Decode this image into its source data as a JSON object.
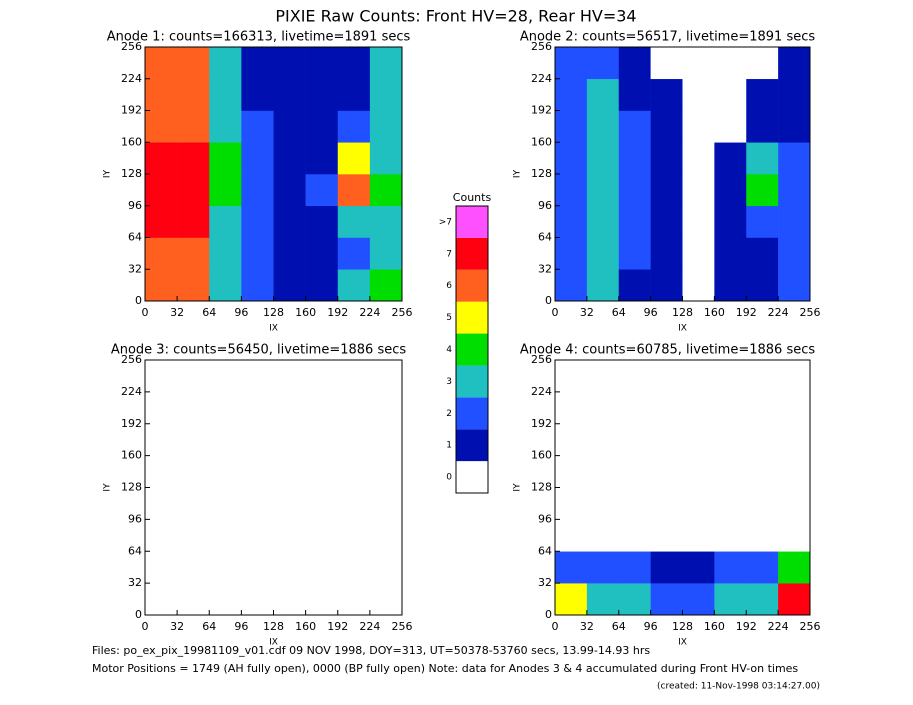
{
  "page": {
    "title": "PIXIE Raw Counts:  Front HV=28, Rear HV=34",
    "footer": [
      "Files: po_ex_pix_19981109_v01.cdf    09 NOV 1998, DOY=313, UT=50378-53760 secs, 13.99-14.93 hrs",
      "Motor Positions = 1749 (AH fully open), 0000 (BP fully open)    Note: data for Anodes 3 & 4 accumulated during Front HV-on times",
      "(created: 11-Nov-1998 03:14:27.00)"
    ]
  },
  "colorbar": {
    "title": "Counts",
    "ticks": [
      0,
      1,
      2,
      3,
      4,
      5,
      6,
      7,
      {
        "value": 8,
        "label": ">7"
      }
    ],
    "colors": [
      "#ffffff",
      "#0010b0",
      "#2050ff",
      "#20c0c0",
      "#00dd00",
      "#ffff00",
      "#ff6020",
      "#ff0010",
      "#ff50ff"
    ]
  },
  "chart_data": [
    {
      "type": "heatmap",
      "title": "Anode 1: counts=166313, livetime=1891 secs",
      "xlabel": "IX",
      "ylabel": "IY",
      "xlim": [
        0,
        256
      ],
      "ylim": [
        0,
        256
      ],
      "xticks": [
        0,
        32,
        64,
        96,
        128,
        160,
        192,
        224,
        256
      ],
      "yticks": [
        0,
        32,
        64,
        96,
        128,
        160,
        192,
        224,
        256
      ],
      "z": [
        [
          6,
          6,
          3,
          2,
          1,
          1,
          3,
          4
        ],
        [
          6,
          6,
          3,
          2,
          1,
          1,
          2,
          3
        ],
        [
          7,
          7,
          3,
          2,
          1,
          1,
          3,
          3
        ],
        [
          7,
          7,
          4,
          2,
          1,
          2,
          6,
          4
        ],
        [
          7,
          7,
          4,
          2,
          1,
          1,
          5,
          3
        ],
        [
          6,
          6,
          3,
          2,
          1,
          1,
          2,
          3
        ],
        [
          6,
          6,
          3,
          1,
          1,
          1,
          1,
          3
        ],
        [
          6,
          6,
          3,
          1,
          1,
          1,
          1,
          3
        ]
      ]
    },
    {
      "type": "heatmap",
      "title": "Anode 2: counts=56517, livetime=1891 secs",
      "xlabel": "IX",
      "ylabel": "IY",
      "xlim": [
        0,
        256
      ],
      "ylim": [
        0,
        256
      ],
      "xticks": [
        0,
        32,
        64,
        96,
        128,
        160,
        192,
        224,
        256
      ],
      "yticks": [
        0,
        32,
        64,
        96,
        128,
        160,
        192,
        224,
        256
      ],
      "z": [
        [
          2,
          3,
          1,
          1,
          0,
          1,
          1,
          2
        ],
        [
          2,
          3,
          2,
          1,
          0,
          1,
          1,
          2
        ],
        [
          2,
          3,
          2,
          1,
          0,
          1,
          2,
          2
        ],
        [
          2,
          3,
          2,
          1,
          0,
          1,
          4,
          2
        ],
        [
          2,
          3,
          2,
          1,
          0,
          1,
          3,
          2
        ],
        [
          2,
          3,
          2,
          1,
          0,
          0,
          1,
          1
        ],
        [
          2,
          3,
          1,
          1,
          0,
          0,
          1,
          1
        ],
        [
          2,
          2,
          1,
          0,
          0,
          0,
          0,
          1
        ]
      ]
    },
    {
      "type": "heatmap",
      "title": "Anode 3: counts=56450, livetime=1886 secs",
      "xlabel": "IX",
      "ylabel": "IY",
      "xlim": [
        0,
        256
      ],
      "ylim": [
        0,
        256
      ],
      "xticks": [
        0,
        32,
        64,
        96,
        128,
        160,
        192,
        224,
        256
      ],
      "yticks": [
        0,
        32,
        64,
        96,
        128,
        160,
        192,
        224,
        256
      ],
      "z": [
        [
          0,
          0,
          0,
          0,
          0,
          0,
          0,
          0
        ],
        [
          0,
          0,
          0,
          0,
          0,
          0,
          0,
          0
        ],
        [
          0,
          0,
          0,
          0,
          0,
          0,
          0,
          0
        ],
        [
          0,
          0,
          0,
          0,
          0,
          0,
          0,
          0
        ],
        [
          0,
          0,
          0,
          0,
          0,
          0,
          0,
          0
        ],
        [
          0,
          0,
          0,
          0,
          0,
          0,
          0,
          0
        ],
        [
          0,
          0,
          0,
          0,
          0,
          0,
          0,
          0
        ],
        [
          0,
          0,
          0,
          0,
          0,
          0,
          0,
          0
        ]
      ]
    },
    {
      "type": "heatmap",
      "title": "Anode 4: counts=60785, livetime=1886 secs",
      "xlabel": "IX",
      "ylabel": "IY",
      "xlim": [
        0,
        256
      ],
      "ylim": [
        0,
        256
      ],
      "xticks": [
        0,
        32,
        64,
        96,
        128,
        160,
        192,
        224,
        256
      ],
      "yticks": [
        0,
        32,
        64,
        96,
        128,
        160,
        192,
        224,
        256
      ],
      "z": [
        [
          5,
          3,
          3,
          2,
          2,
          3,
          3,
          7
        ],
        [
          2,
          2,
          2,
          1,
          1,
          2,
          2,
          4
        ],
        [
          0,
          0,
          0,
          0,
          0,
          0,
          0,
          0
        ],
        [
          0,
          0,
          0,
          0,
          0,
          0,
          0,
          0
        ],
        [
          0,
          0,
          0,
          0,
          0,
          0,
          0,
          0
        ],
        [
          0,
          0,
          0,
          0,
          0,
          0,
          0,
          0
        ],
        [
          0,
          0,
          0,
          0,
          0,
          0,
          0,
          0
        ],
        [
          0,
          0,
          0,
          0,
          0,
          0,
          0,
          0
        ]
      ]
    }
  ]
}
